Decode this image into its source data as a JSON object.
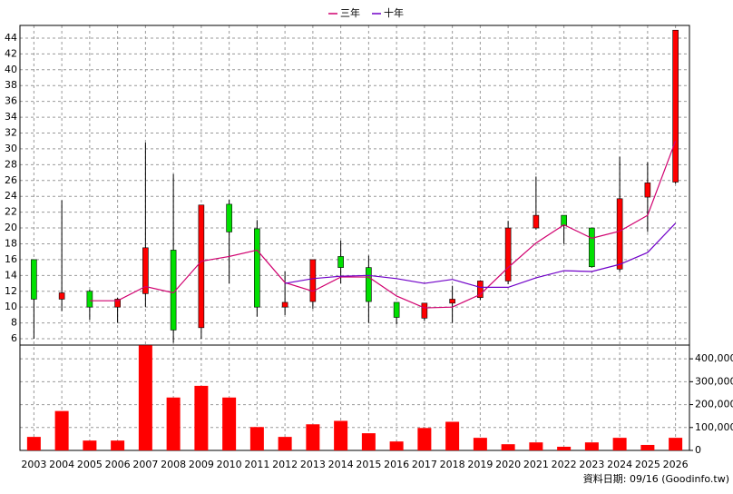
{
  "chart_data": [
    {
      "type": "candlestick",
      "categories": [
        "2003",
        "2004",
        "2005",
        "2006",
        "2007",
        "2008",
        "2009",
        "2010",
        "2011",
        "2012",
        "2013",
        "2014",
        "2015",
        "2016",
        "2017",
        "2018",
        "2019",
        "2020",
        "2021",
        "2022",
        "2023",
        "2024",
        "2025",
        "2026"
      ],
      "open": [
        16,
        11,
        12,
        10,
        11.7,
        17.2,
        7.4,
        23,
        19.9,
        10,
        10.7,
        16.4,
        15,
        10.6,
        8.6,
        10.5,
        11.2,
        13.3,
        20,
        21.6,
        20,
        14.8,
        23.9,
        25.8
      ],
      "high": [
        16,
        23.5,
        12.2,
        11.2,
        30.8,
        26.8,
        22.9,
        23.6,
        21,
        14.5,
        16,
        18.4,
        16.5,
        10.6,
        10.5,
        12.7,
        13.4,
        20.9,
        26.5,
        21.6,
        20,
        29,
        28.3,
        45
      ],
      "low": [
        6,
        9.5,
        8.4,
        8,
        10,
        5.5,
        6,
        13,
        8.8,
        9,
        9.8,
        13,
        8,
        7.8,
        8.3,
        8,
        10.9,
        12.9,
        19.8,
        18,
        15,
        14.5,
        19.5,
        25.6
      ],
      "close": [
        11,
        11.8,
        10,
        11,
        17.5,
        7.1,
        22.9,
        19.5,
        10,
        10.6,
        16,
        15,
        10.7,
        8.7,
        10.5,
        11,
        13.3,
        20,
        21.6,
        20.3,
        15.1,
        23.7,
        25.7,
        45
      ],
      "up_color": "#ff0000",
      "down_color": "#00e000",
      "series": [
        {
          "name": "三年",
          "color": "#d0006f",
          "values": [
            null,
            null,
            10.8,
            10.8,
            12.6,
            11.8,
            15.8,
            16.4,
            17.2,
            13.1,
            12.0,
            13.8,
            13.8,
            11.4,
            9.9,
            10.0,
            11.6,
            15.0,
            18.1,
            20.4,
            18.7,
            19.6,
            21.6,
            31
          ]
        },
        {
          "name": "十年",
          "color": "#7000c8",
          "values": [
            null,
            null,
            null,
            null,
            null,
            null,
            null,
            null,
            null,
            13.0,
            13.6,
            13.9,
            14.0,
            13.6,
            13.0,
            13.5,
            12.5,
            12.5,
            13.7,
            14.6,
            14.5,
            15.4,
            16.9,
            20.6
          ]
        }
      ],
      "ylim": [
        5.2,
        45.6
      ],
      "yticks": [
        6,
        8,
        10,
        12,
        14,
        16,
        18,
        20,
        22,
        24,
        26,
        28,
        30,
        32,
        34,
        36,
        38,
        40,
        42,
        44
      ],
      "grid": true
    },
    {
      "type": "bar",
      "color": "#ff0000",
      "values": [
        59000,
        172000,
        43000,
        43000,
        459000,
        231000,
        282000,
        231000,
        102000,
        59000,
        114000,
        129000,
        75000,
        39000,
        98000,
        125000,
        55000,
        27000,
        35000,
        16000,
        35000,
        55000,
        24000,
        55000
      ],
      "ylim": [
        0,
        460000
      ],
      "yticks": [
        0,
        {
          "value": 100000,
          "label": "100,000"
        },
        {
          "value": 200000,
          "label": "200,000"
        },
        {
          "value": 300000,
          "label": "300,000"
        },
        {
          "value": 400000,
          "label": "400,000"
        }
      ],
      "grid": true
    }
  ],
  "footer": "資料日期: 09/16 (Goodinfo.tw)"
}
